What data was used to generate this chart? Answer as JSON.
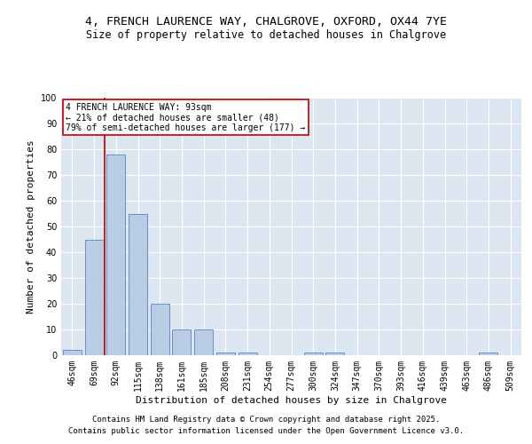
{
  "title_line1": "4, FRENCH LAURENCE WAY, CHALGROVE, OXFORD, OX44 7YE",
  "title_line2": "Size of property relative to detached houses in Chalgrove",
  "xlabel": "Distribution of detached houses by size in Chalgrove",
  "ylabel": "Number of detached properties",
  "categories": [
    "46sqm",
    "69sqm",
    "92sqm",
    "115sqm",
    "138sqm",
    "161sqm",
    "185sqm",
    "208sqm",
    "231sqm",
    "254sqm",
    "277sqm",
    "300sqm",
    "324sqm",
    "347sqm",
    "370sqm",
    "393sqm",
    "416sqm",
    "439sqm",
    "463sqm",
    "486sqm",
    "509sqm"
  ],
  "values": [
    2,
    45,
    78,
    55,
    20,
    10,
    10,
    1,
    1,
    0,
    0,
    1,
    1,
    0,
    0,
    0,
    0,
    0,
    0,
    1,
    0
  ],
  "bar_color": "#b8cce4",
  "bar_edge_color": "#4472c4",
  "vline_color": "#c00000",
  "ylim": [
    0,
    100
  ],
  "yticks": [
    0,
    10,
    20,
    30,
    40,
    50,
    60,
    70,
    80,
    90,
    100
  ],
  "annotation_text": "4 FRENCH LAURENCE WAY: 93sqm\n← 21% of detached houses are smaller (48)\n79% of semi-detached houses are larger (177) →",
  "annotation_box_color": "#ffffff",
  "annotation_box_edge_color": "#c00000",
  "footer_line1": "Contains HM Land Registry data © Crown copyright and database right 2025.",
  "footer_line2": "Contains public sector information licensed under the Open Government Licence v3.0.",
  "fig_bg_color": "#ffffff",
  "plot_bg_color": "#dce6f1",
  "grid_color": "#ffffff",
  "title1_fontsize": 9.5,
  "title2_fontsize": 8.5,
  "axis_label_fontsize": 8,
  "tick_fontsize": 7,
  "footer_fontsize": 6.5,
  "annotation_fontsize": 7
}
